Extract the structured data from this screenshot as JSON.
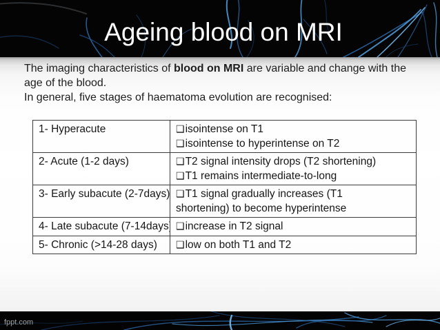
{
  "slide": {
    "title": "Ageing blood on MRI",
    "watermark": "fppt.com"
  },
  "intro": {
    "line1_pre": "The imaging characteristics of ",
    "line1_bold": "blood on MRI",
    "line1_post": " are variable and change with the",
    "line2": "age of the blood.",
    "line3": "In general, five stages of haematoma evolution are recognised:"
  },
  "table": {
    "bullet_char": "❑",
    "rows": [
      {
        "stage": "1- Hyperacute",
        "findings": [
          {
            "bullet": true,
            "text": "isointense on T1"
          },
          {
            "bullet": true,
            "text": "isointense to hyperintense on T2"
          }
        ]
      },
      {
        "stage": "2- Acute (1-2 days)",
        "findings": [
          {
            "bullet": true,
            "text": "T2 signal intensity drops (T2 shortening)"
          },
          {
            "bullet": true,
            "text": "T1 remains intermediate-to-long"
          }
        ]
      },
      {
        "stage": "3- Early subacute (2-7days)",
        "findings": [
          {
            "bullet": true,
            "text": "T1 signal gradually increases (T1"
          },
          {
            "bullet": false,
            "text": "shortening) to become hyperintense"
          }
        ]
      },
      {
        "stage": "4- Late subacute (7-14days)",
        "findings": [
          {
            "bullet": true,
            "text": "increase in T2 signal"
          }
        ]
      },
      {
        "stage": "5- Chronic (>14-28 days)",
        "findings": [
          {
            "bullet": true,
            "text": "low on both T1 and T2"
          }
        ]
      }
    ]
  },
  "colors": {
    "header_bg": "#040404",
    "streak_blue": "#2f6fb4",
    "streak_bright": "#6db4e8",
    "table_border": "#3b3b3b",
    "body_text": "#1d1d1d",
    "title_text": "#ffffff",
    "watermark_text": "#a3a3a3"
  }
}
